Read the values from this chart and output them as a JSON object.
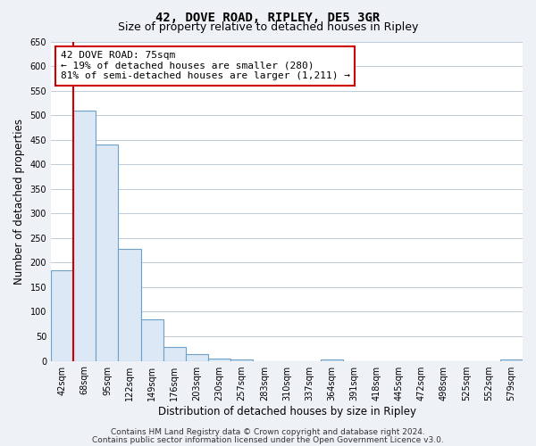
{
  "title": "42, DOVE ROAD, RIPLEY, DE5 3GR",
  "subtitle": "Size of property relative to detached houses in Ripley",
  "xlabel": "Distribution of detached houses by size in Ripley",
  "ylabel": "Number of detached properties",
  "bar_labels": [
    "42sqm",
    "68sqm",
    "95sqm",
    "122sqm",
    "149sqm",
    "176sqm",
    "203sqm",
    "230sqm",
    "257sqm",
    "283sqm",
    "310sqm",
    "337sqm",
    "364sqm",
    "391sqm",
    "418sqm",
    "445sqm",
    "472sqm",
    "498sqm",
    "525sqm",
    "552sqm",
    "579sqm"
  ],
  "bar_values": [
    185,
    510,
    440,
    228,
    85,
    28,
    13,
    5,
    2,
    0,
    0,
    0,
    3,
    0,
    0,
    0,
    0,
    0,
    0,
    0,
    2
  ],
  "bar_fill_color": "#dce8f5",
  "bar_edge_color": "#6ca0c8",
  "vline_color": "#cc0000",
  "annotation_text": "42 DOVE ROAD: 75sqm\n← 19% of detached houses are smaller (280)\n81% of semi-detached houses are larger (1,211) →",
  "annotation_box_facecolor": "#ffffff",
  "annotation_box_edgecolor": "#cc0000",
  "ylim": [
    0,
    650
  ],
  "yticks": [
    0,
    50,
    100,
    150,
    200,
    250,
    300,
    350,
    400,
    450,
    500,
    550,
    600,
    650
  ],
  "footer1": "Contains HM Land Registry data © Crown copyright and database right 2024.",
  "footer2": "Contains public sector information licensed under the Open Government Licence v3.0.",
  "background_color": "#eef2f7",
  "plot_background_color": "#ffffff",
  "grid_color": "#c0ccd8",
  "title_fontsize": 10,
  "subtitle_fontsize": 9,
  "xlabel_fontsize": 8.5,
  "ylabel_fontsize": 8.5,
  "tick_fontsize": 7,
  "annotation_fontsize": 8,
  "footer_fontsize": 6.5,
  "vline_bar_index": 1
}
